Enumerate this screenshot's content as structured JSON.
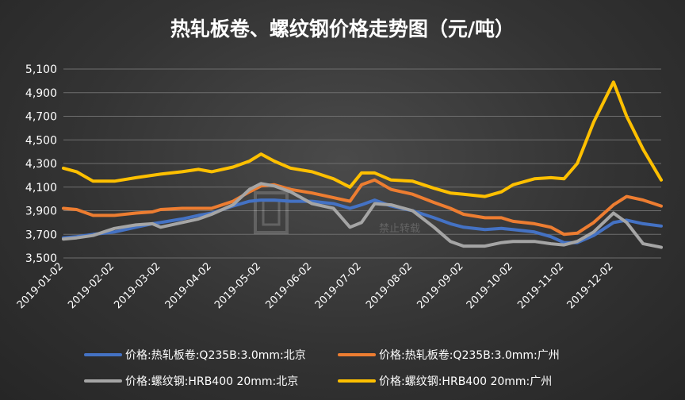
{
  "chart_data": {
    "type": "line",
    "title": "热轧板卷、螺纹钢价格走势图（元/吨）",
    "xlabel": "",
    "ylabel": "",
    "ylim": [
      3500,
      5100
    ],
    "yticks": [
      "3,500",
      "3,700",
      "3,900",
      "4,100",
      "4,300",
      "4,500",
      "4,700",
      "4,900",
      "5,100"
    ],
    "xticks": [
      "2019-01-02",
      "2019-02-02",
      "2019-03-02",
      "2019-04-02",
      "2019-05-02",
      "2019-06-02",
      "2019-07-02",
      "2019-08-02",
      "2019-09-02",
      "2019-10-02",
      "2019-11-02",
      "2019-12-02"
    ],
    "grid": true,
    "legend_position": "bottom",
    "watermark": "禁止转载",
    "series": [
      {
        "name": "价格:热轧板卷:Q235B:3.0mm:北京",
        "color": "#4472C4",
        "points": [
          [
            "2019-01-02",
            3670
          ],
          [
            "2019-01-10",
            3680
          ],
          [
            "2019-01-20",
            3700
          ],
          [
            "2019-02-02",
            3720
          ],
          [
            "2019-02-15",
            3760
          ],
          [
            "2019-02-25",
            3790
          ],
          [
            "2019-03-02",
            3800
          ],
          [
            "2019-03-15",
            3830
          ],
          [
            "2019-03-25",
            3860
          ],
          [
            "2019-04-02",
            3880
          ],
          [
            "2019-04-15",
            3940
          ],
          [
            "2019-04-25",
            3980
          ],
          [
            "2019-05-02",
            3990
          ],
          [
            "2019-05-10",
            3990
          ],
          [
            "2019-05-20",
            3980
          ],
          [
            "2019-06-02",
            3980
          ],
          [
            "2019-06-15",
            3960
          ],
          [
            "2019-06-25",
            3920
          ],
          [
            "2019-07-02",
            3950
          ],
          [
            "2019-07-10",
            3990
          ],
          [
            "2019-07-20",
            3940
          ],
          [
            "2019-08-02",
            3900
          ],
          [
            "2019-08-15",
            3840
          ],
          [
            "2019-08-25",
            3790
          ],
          [
            "2019-09-02",
            3760
          ],
          [
            "2019-09-15",
            3740
          ],
          [
            "2019-09-25",
            3750
          ],
          [
            "2019-10-02",
            3740
          ],
          [
            "2019-10-15",
            3720
          ],
          [
            "2019-10-25",
            3680
          ],
          [
            "2019-11-02",
            3630
          ],
          [
            "2019-11-10",
            3630
          ],
          [
            "2019-11-20",
            3690
          ],
          [
            "2019-12-02",
            3800
          ],
          [
            "2019-12-10",
            3820
          ],
          [
            "2019-12-20",
            3790
          ],
          [
            "2019-12-31",
            3770
          ]
        ]
      },
      {
        "name": "价格:热轧板卷:Q235B:3.0mm:广州",
        "color": "#ED7D31",
        "points": [
          [
            "2019-01-02",
            3920
          ],
          [
            "2019-01-10",
            3910
          ],
          [
            "2019-01-20",
            3860
          ],
          [
            "2019-02-02",
            3860
          ],
          [
            "2019-02-15",
            3880
          ],
          [
            "2019-02-25",
            3890
          ],
          [
            "2019-03-02",
            3910
          ],
          [
            "2019-03-15",
            3920
          ],
          [
            "2019-03-25",
            3920
          ],
          [
            "2019-04-02",
            3920
          ],
          [
            "2019-04-15",
            3980
          ],
          [
            "2019-04-25",
            4060
          ],
          [
            "2019-05-02",
            4110
          ],
          [
            "2019-05-10",
            4120
          ],
          [
            "2019-05-20",
            4080
          ],
          [
            "2019-06-02",
            4050
          ],
          [
            "2019-06-15",
            4010
          ],
          [
            "2019-06-25",
            3980
          ],
          [
            "2019-07-02",
            4120
          ],
          [
            "2019-07-10",
            4160
          ],
          [
            "2019-07-20",
            4080
          ],
          [
            "2019-08-02",
            4040
          ],
          [
            "2019-08-15",
            3970
          ],
          [
            "2019-08-25",
            3920
          ],
          [
            "2019-09-02",
            3870
          ],
          [
            "2019-09-15",
            3840
          ],
          [
            "2019-09-25",
            3840
          ],
          [
            "2019-10-02",
            3810
          ],
          [
            "2019-10-15",
            3790
          ],
          [
            "2019-10-25",
            3760
          ],
          [
            "2019-11-02",
            3700
          ],
          [
            "2019-11-10",
            3710
          ],
          [
            "2019-11-20",
            3800
          ],
          [
            "2019-12-02",
            3950
          ],
          [
            "2019-12-10",
            4020
          ],
          [
            "2019-12-20",
            3990
          ],
          [
            "2019-12-31",
            3940
          ]
        ]
      },
      {
        "name": "价格:螺纹钢:HRB400 20mm:北京",
        "color": "#A5A5A5",
        "points": [
          [
            "2019-01-02",
            3660
          ],
          [
            "2019-01-10",
            3670
          ],
          [
            "2019-01-20",
            3690
          ],
          [
            "2019-02-02",
            3750
          ],
          [
            "2019-02-15",
            3780
          ],
          [
            "2019-02-25",
            3790
          ],
          [
            "2019-03-02",
            3760
          ],
          [
            "2019-03-15",
            3800
          ],
          [
            "2019-03-25",
            3830
          ],
          [
            "2019-04-02",
            3870
          ],
          [
            "2019-04-15",
            3950
          ],
          [
            "2019-04-25",
            4080
          ],
          [
            "2019-05-02",
            4130
          ],
          [
            "2019-05-10",
            4110
          ],
          [
            "2019-05-20",
            4060
          ],
          [
            "2019-06-02",
            3960
          ],
          [
            "2019-06-15",
            3920
          ],
          [
            "2019-06-25",
            3760
          ],
          [
            "2019-07-02",
            3800
          ],
          [
            "2019-07-10",
            3960
          ],
          [
            "2019-07-20",
            3950
          ],
          [
            "2019-08-02",
            3900
          ],
          [
            "2019-08-15",
            3760
          ],
          [
            "2019-08-25",
            3640
          ],
          [
            "2019-09-02",
            3600
          ],
          [
            "2019-09-15",
            3600
          ],
          [
            "2019-09-25",
            3630
          ],
          [
            "2019-10-02",
            3640
          ],
          [
            "2019-10-15",
            3640
          ],
          [
            "2019-10-25",
            3620
          ],
          [
            "2019-11-02",
            3610
          ],
          [
            "2019-11-10",
            3640
          ],
          [
            "2019-11-20",
            3720
          ],
          [
            "2019-12-02",
            3880
          ],
          [
            "2019-12-10",
            3800
          ],
          [
            "2019-12-20",
            3620
          ],
          [
            "2019-12-31",
            3590
          ]
        ]
      },
      {
        "name": "价格:螺纹钢:HRB400 20mm:广州",
        "color": "#FFC000",
        "points": [
          [
            "2019-01-02",
            4260
          ],
          [
            "2019-01-10",
            4230
          ],
          [
            "2019-01-20",
            4150
          ],
          [
            "2019-02-02",
            4150
          ],
          [
            "2019-02-15",
            4180
          ],
          [
            "2019-02-25",
            4200
          ],
          [
            "2019-03-02",
            4210
          ],
          [
            "2019-03-15",
            4230
          ],
          [
            "2019-03-25",
            4250
          ],
          [
            "2019-04-02",
            4230
          ],
          [
            "2019-04-15",
            4270
          ],
          [
            "2019-04-25",
            4320
          ],
          [
            "2019-05-02",
            4380
          ],
          [
            "2019-05-10",
            4320
          ],
          [
            "2019-05-20",
            4260
          ],
          [
            "2019-06-02",
            4230
          ],
          [
            "2019-06-15",
            4170
          ],
          [
            "2019-06-25",
            4100
          ],
          [
            "2019-07-02",
            4220
          ],
          [
            "2019-07-10",
            4220
          ],
          [
            "2019-07-20",
            4160
          ],
          [
            "2019-08-02",
            4150
          ],
          [
            "2019-08-15",
            4090
          ],
          [
            "2019-08-25",
            4050
          ],
          [
            "2019-09-02",
            4040
          ],
          [
            "2019-09-15",
            4020
          ],
          [
            "2019-09-25",
            4060
          ],
          [
            "2019-10-02",
            4120
          ],
          [
            "2019-10-15",
            4170
          ],
          [
            "2019-10-25",
            4180
          ],
          [
            "2019-11-02",
            4170
          ],
          [
            "2019-11-10",
            4300
          ],
          [
            "2019-11-20",
            4650
          ],
          [
            "2019-12-02",
            4990
          ],
          [
            "2019-12-10",
            4700
          ],
          [
            "2019-12-20",
            4420
          ],
          [
            "2019-12-31",
            4160
          ]
        ]
      }
    ]
  }
}
